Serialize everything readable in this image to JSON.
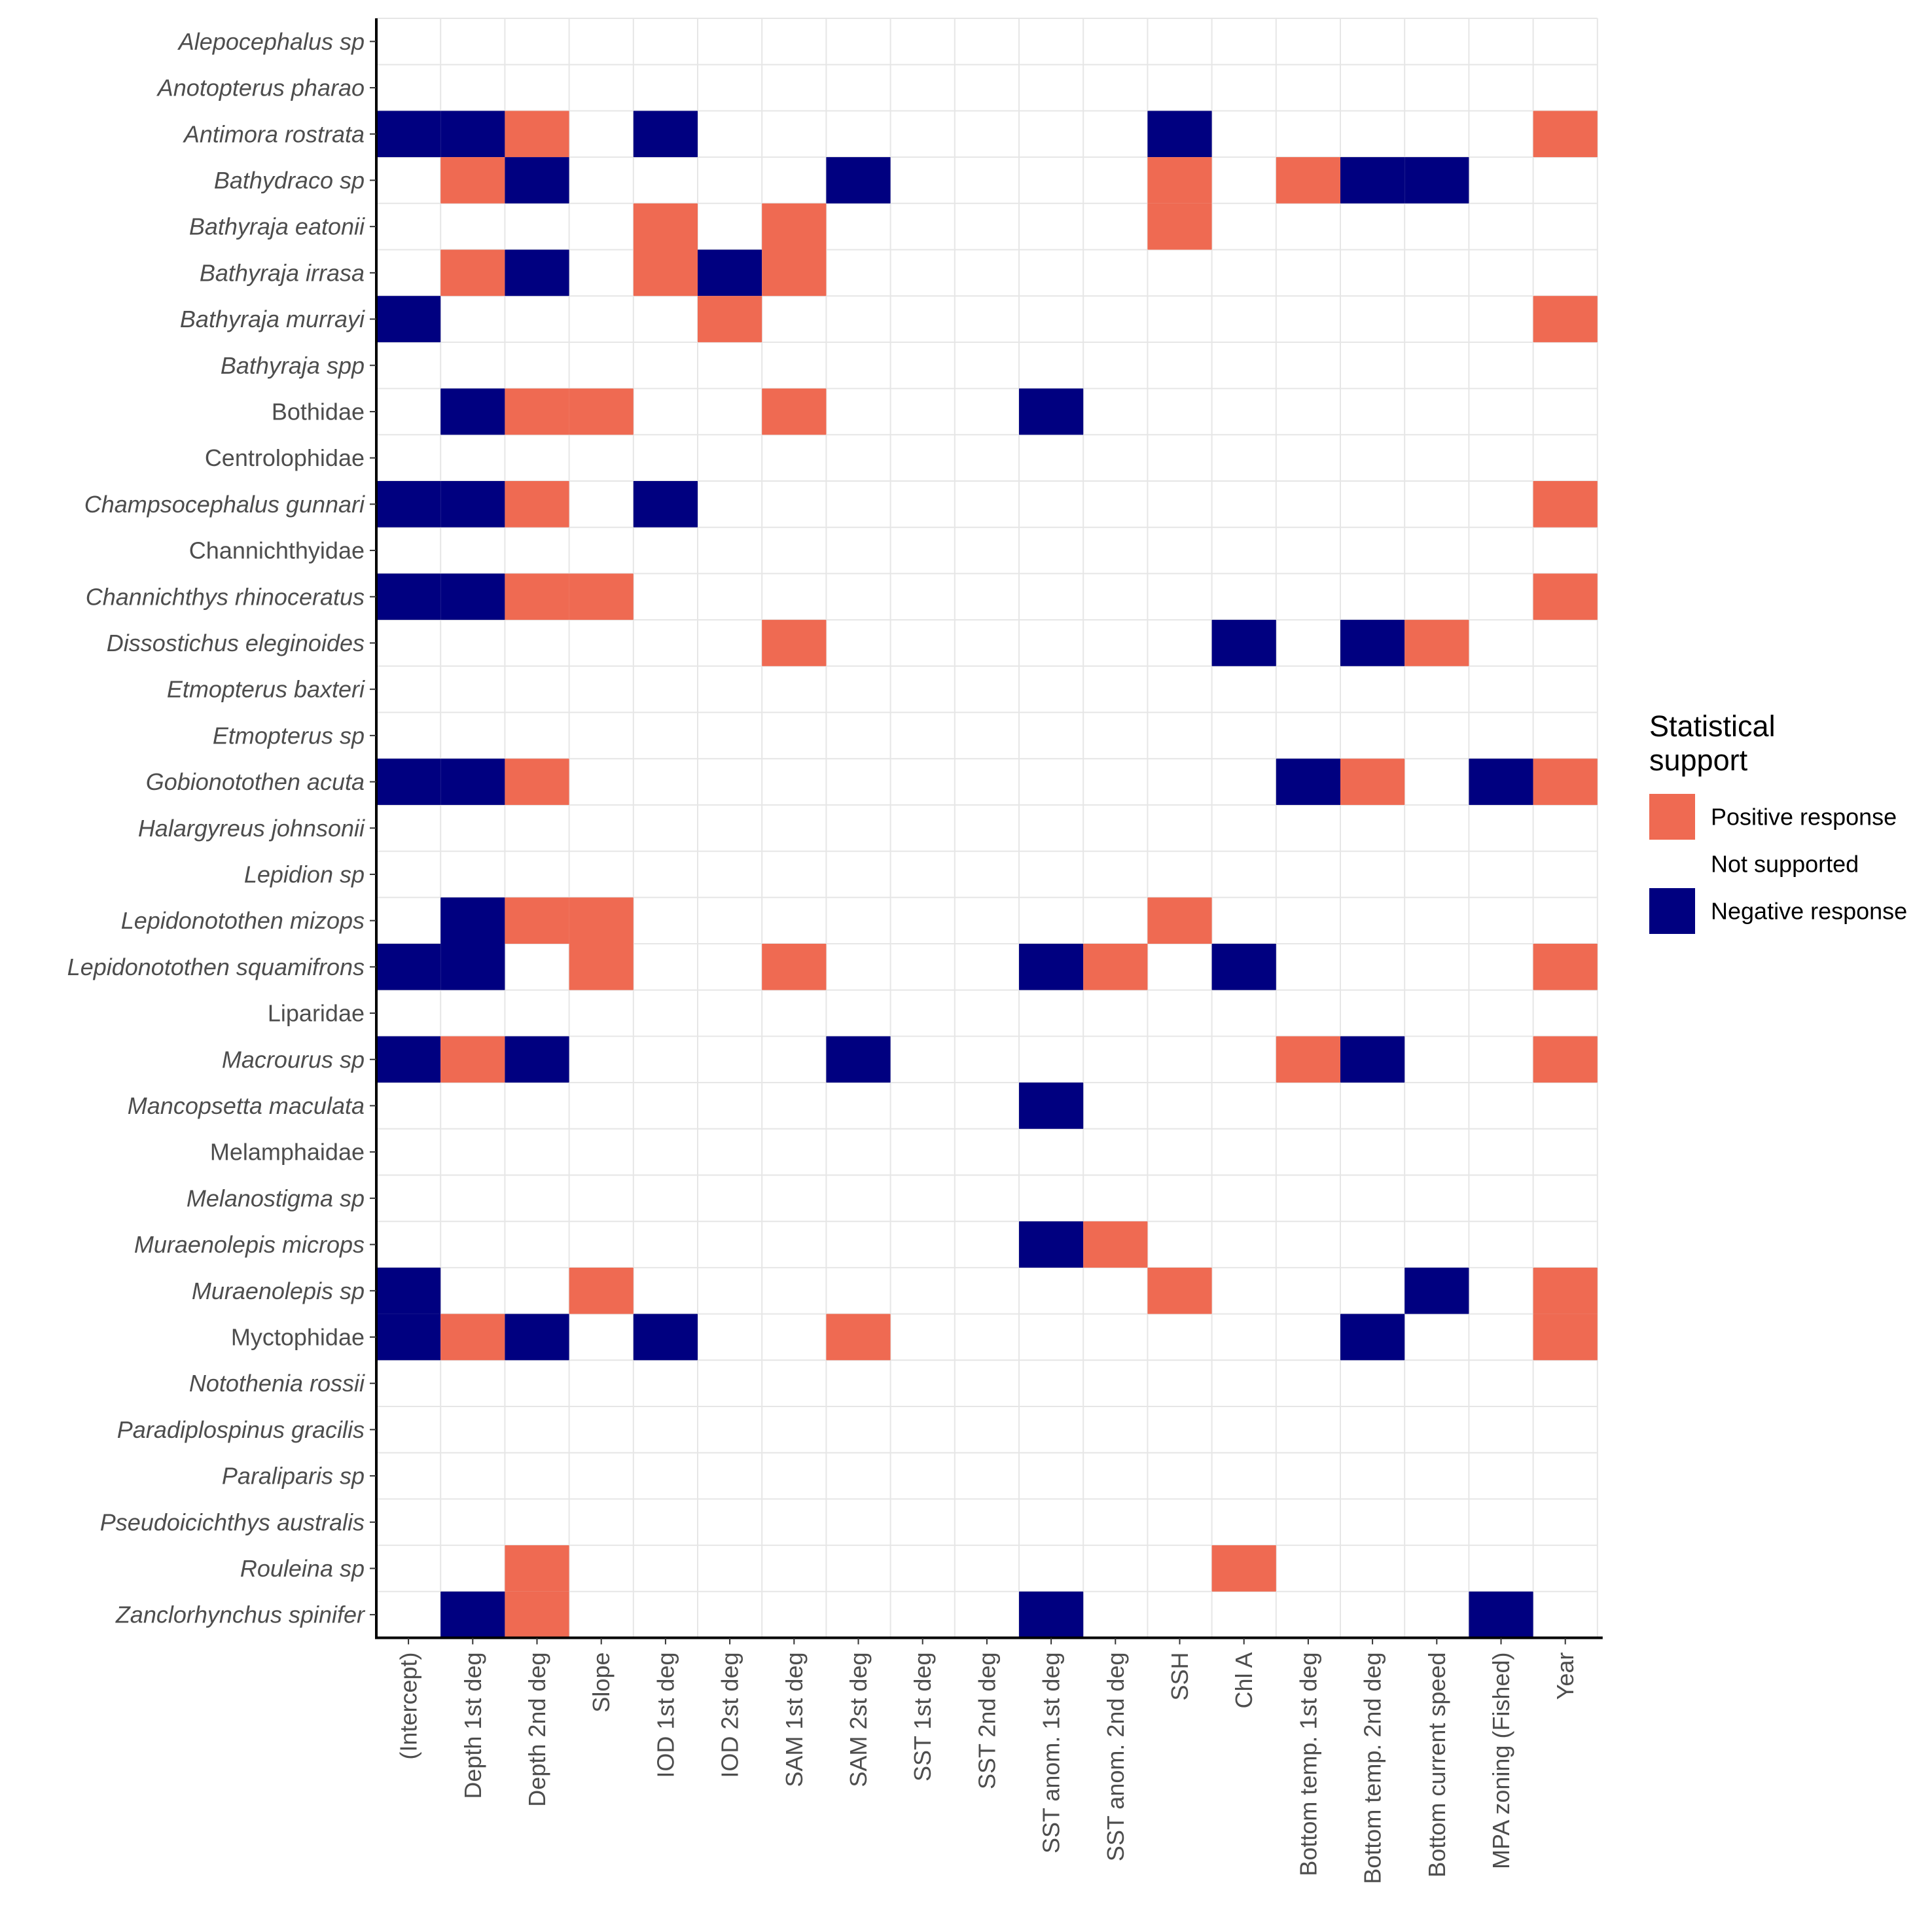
{
  "chart_data": {
    "type": "heatmap",
    "title": "",
    "xlabel": "",
    "ylabel": "",
    "columns": [
      "(Intercept)",
      "Depth 1st deg",
      "Depth 2nd deg",
      "Slope",
      "IOD 1st deg",
      "IOD 2st deg",
      "SAM 1st deg",
      "SAM 2st deg",
      "SST 1st deg",
      "SST 2nd deg",
      "SST anom. 1st deg",
      "SST anom. 2nd deg",
      "SSH",
      "Chl A",
      "Bottom temp. 1st deg",
      "Bottom temp. 2nd deg",
      "Bottom current speed",
      "MPA zoning (Fished)",
      "Year"
    ],
    "rows": [
      {
        "label": "Alepocephalus sp",
        "italic": true,
        "values": [
          0,
          0,
          0,
          0,
          0,
          0,
          0,
          0,
          0,
          0,
          0,
          0,
          0,
          0,
          0,
          0,
          0,
          0,
          0
        ]
      },
      {
        "label": "Anotopterus pharao",
        "italic": true,
        "values": [
          0,
          0,
          0,
          0,
          0,
          0,
          0,
          0,
          0,
          0,
          0,
          0,
          0,
          0,
          0,
          0,
          0,
          0,
          0
        ]
      },
      {
        "label": "Antimora rostrata",
        "italic": true,
        "values": [
          -1,
          -1,
          1,
          0,
          -1,
          0,
          0,
          0,
          0,
          0,
          0,
          0,
          -1,
          0,
          0,
          0,
          0,
          0,
          1
        ]
      },
      {
        "label": "Bathydraco sp",
        "italic": true,
        "values": [
          0,
          1,
          -1,
          0,
          0,
          0,
          0,
          -1,
          0,
          0,
          0,
          0,
          1,
          0,
          1,
          -1,
          -1,
          0,
          0
        ]
      },
      {
        "label": "Bathyraja eatonii",
        "italic": true,
        "values": [
          0,
          0,
          0,
          0,
          1,
          0,
          1,
          0,
          0,
          0,
          0,
          0,
          1,
          0,
          0,
          0,
          0,
          0,
          0
        ]
      },
      {
        "label": "Bathyraja irrasa",
        "italic": true,
        "values": [
          0,
          1,
          -1,
          0,
          1,
          -1,
          1,
          0,
          0,
          0,
          0,
          0,
          0,
          0,
          0,
          0,
          0,
          0,
          0
        ]
      },
      {
        "label": "Bathyraja murrayi",
        "italic": true,
        "values": [
          -1,
          0,
          0,
          0,
          0,
          1,
          0,
          0,
          0,
          0,
          0,
          0,
          0,
          0,
          0,
          0,
          0,
          0,
          1
        ]
      },
      {
        "label": "Bathyraja spp",
        "italic": true,
        "values": [
          0,
          0,
          0,
          0,
          0,
          0,
          0,
          0,
          0,
          0,
          0,
          0,
          0,
          0,
          0,
          0,
          0,
          0,
          0
        ]
      },
      {
        "label": "Bothidae",
        "italic": false,
        "values": [
          0,
          -1,
          1,
          1,
          0,
          0,
          1,
          0,
          0,
          0,
          -1,
          0,
          0,
          0,
          0,
          0,
          0,
          0,
          0
        ]
      },
      {
        "label": "Centrolophidae",
        "italic": false,
        "values": [
          0,
          0,
          0,
          0,
          0,
          0,
          0,
          0,
          0,
          0,
          0,
          0,
          0,
          0,
          0,
          0,
          0,
          0,
          0
        ]
      },
      {
        "label": "Champsocephalus gunnari",
        "italic": true,
        "values": [
          -1,
          -1,
          1,
          0,
          -1,
          0,
          0,
          0,
          0,
          0,
          0,
          0,
          0,
          0,
          0,
          0,
          0,
          0,
          1
        ]
      },
      {
        "label": "Channichthyidae",
        "italic": false,
        "values": [
          0,
          0,
          0,
          0,
          0,
          0,
          0,
          0,
          0,
          0,
          0,
          0,
          0,
          0,
          0,
          0,
          0,
          0,
          0
        ]
      },
      {
        "label": "Channichthys rhinoceratus",
        "italic": true,
        "values": [
          -1,
          -1,
          1,
          1,
          0,
          0,
          0,
          0,
          0,
          0,
          0,
          0,
          0,
          0,
          0,
          0,
          0,
          0,
          1
        ]
      },
      {
        "label": "Dissostichus eleginoides",
        "italic": true,
        "values": [
          0,
          0,
          0,
          0,
          0,
          0,
          1,
          0,
          0,
          0,
          0,
          0,
          0,
          -1,
          0,
          -1,
          1,
          0,
          0
        ]
      },
      {
        "label": "Etmopterus baxteri",
        "italic": true,
        "values": [
          0,
          0,
          0,
          0,
          0,
          0,
          0,
          0,
          0,
          0,
          0,
          0,
          0,
          0,
          0,
          0,
          0,
          0,
          0
        ]
      },
      {
        "label": "Etmopterus sp",
        "italic": true,
        "values": [
          0,
          0,
          0,
          0,
          0,
          0,
          0,
          0,
          0,
          0,
          0,
          0,
          0,
          0,
          0,
          0,
          0,
          0,
          0
        ]
      },
      {
        "label": "Gobionotothen acuta",
        "italic": true,
        "values": [
          -1,
          -1,
          1,
          0,
          0,
          0,
          0,
          0,
          0,
          0,
          0,
          0,
          0,
          0,
          -1,
          1,
          0,
          -1,
          1
        ]
      },
      {
        "label": "Halargyreus johnsonii",
        "italic": true,
        "values": [
          0,
          0,
          0,
          0,
          0,
          0,
          0,
          0,
          0,
          0,
          0,
          0,
          0,
          0,
          0,
          0,
          0,
          0,
          0
        ]
      },
      {
        "label": "Lepidion sp",
        "italic": true,
        "values": [
          0,
          0,
          0,
          0,
          0,
          0,
          0,
          0,
          0,
          0,
          0,
          0,
          0,
          0,
          0,
          0,
          0,
          0,
          0
        ]
      },
      {
        "label": "Lepidonotothen mizops",
        "italic": true,
        "values": [
          0,
          -1,
          1,
          1,
          0,
          0,
          0,
          0,
          0,
          0,
          0,
          0,
          1,
          0,
          0,
          0,
          0,
          0,
          0
        ]
      },
      {
        "label": "Lepidonotothen squamifrons",
        "italic": true,
        "values": [
          -1,
          -1,
          0,
          1,
          0,
          0,
          1,
          0,
          0,
          0,
          -1,
          1,
          0,
          -1,
          0,
          0,
          0,
          0,
          1
        ]
      },
      {
        "label": "Liparidae",
        "italic": false,
        "values": [
          0,
          0,
          0,
          0,
          0,
          0,
          0,
          0,
          0,
          0,
          0,
          0,
          0,
          0,
          0,
          0,
          0,
          0,
          0
        ]
      },
      {
        "label": "Macrourus sp",
        "italic": true,
        "values": [
          -1,
          1,
          -1,
          0,
          0,
          0,
          0,
          -1,
          0,
          0,
          0,
          0,
          0,
          0,
          1,
          -1,
          0,
          0,
          1
        ]
      },
      {
        "label": "Mancopsetta maculata",
        "italic": true,
        "values": [
          0,
          0,
          0,
          0,
          0,
          0,
          0,
          0,
          0,
          0,
          -1,
          0,
          0,
          0,
          0,
          0,
          0,
          0,
          0
        ]
      },
      {
        "label": "Melamphaidae",
        "italic": false,
        "values": [
          0,
          0,
          0,
          0,
          0,
          0,
          0,
          0,
          0,
          0,
          0,
          0,
          0,
          0,
          0,
          0,
          0,
          0,
          0
        ]
      },
      {
        "label": "Melanostigma sp",
        "italic": true,
        "values": [
          0,
          0,
          0,
          0,
          0,
          0,
          0,
          0,
          0,
          0,
          0,
          0,
          0,
          0,
          0,
          0,
          0,
          0,
          0
        ]
      },
      {
        "label": "Muraenolepis microps",
        "italic": true,
        "values": [
          0,
          0,
          0,
          0,
          0,
          0,
          0,
          0,
          0,
          0,
          -1,
          1,
          0,
          0,
          0,
          0,
          0,
          0,
          0
        ]
      },
      {
        "label": "Muraenolepis sp",
        "italic": true,
        "values": [
          -1,
          0,
          0,
          1,
          0,
          0,
          0,
          0,
          0,
          0,
          0,
          0,
          1,
          0,
          0,
          0,
          -1,
          0,
          1
        ]
      },
      {
        "label": "Myctophidae",
        "italic": false,
        "values": [
          -1,
          1,
          -1,
          0,
          -1,
          0,
          0,
          1,
          0,
          0,
          0,
          0,
          0,
          0,
          0,
          -1,
          0,
          0,
          1
        ]
      },
      {
        "label": "Notothenia rossii",
        "italic": true,
        "values": [
          0,
          0,
          0,
          0,
          0,
          0,
          0,
          0,
          0,
          0,
          0,
          0,
          0,
          0,
          0,
          0,
          0,
          0,
          0
        ]
      },
      {
        "label": "Paradiplospinus gracilis",
        "italic": true,
        "values": [
          0,
          0,
          0,
          0,
          0,
          0,
          0,
          0,
          0,
          0,
          0,
          0,
          0,
          0,
          0,
          0,
          0,
          0,
          0
        ]
      },
      {
        "label": "Paraliparis sp",
        "italic": true,
        "values": [
          0,
          0,
          0,
          0,
          0,
          0,
          0,
          0,
          0,
          0,
          0,
          0,
          0,
          0,
          0,
          0,
          0,
          0,
          0
        ]
      },
      {
        "label": "Pseudoicichthys australis",
        "italic": true,
        "values": [
          0,
          0,
          0,
          0,
          0,
          0,
          0,
          0,
          0,
          0,
          0,
          0,
          0,
          0,
          0,
          0,
          0,
          0,
          0
        ]
      },
      {
        "label": "Rouleina sp",
        "italic": true,
        "values": [
          0,
          0,
          1,
          0,
          0,
          0,
          0,
          0,
          0,
          0,
          0,
          0,
          0,
          1,
          0,
          0,
          0,
          0,
          0
        ]
      },
      {
        "label": "Zanclorhynchus spinifer",
        "italic": true,
        "values": [
          0,
          -1,
          1,
          0,
          0,
          0,
          0,
          0,
          0,
          0,
          -1,
          0,
          0,
          0,
          0,
          0,
          0,
          -1,
          0
        ]
      }
    ],
    "legend": {
      "title": [
        "Statistical",
        "support"
      ],
      "position": "right",
      "items": [
        {
          "label": "Positive response",
          "value": 1,
          "color": "#ef6a52"
        },
        {
          "label": "Not supported",
          "value": 0,
          "color": "#ffffff"
        },
        {
          "label": "Negative response",
          "value": -1,
          "color": "#000080"
        }
      ]
    },
    "grid": true,
    "colors": {
      "positive": "#ef6a52",
      "neutral": "#ffffff",
      "negative": "#000080",
      "grid": "#e6e6e6",
      "axis": "#000000",
      "tick_text": "#4d4d4d"
    }
  }
}
